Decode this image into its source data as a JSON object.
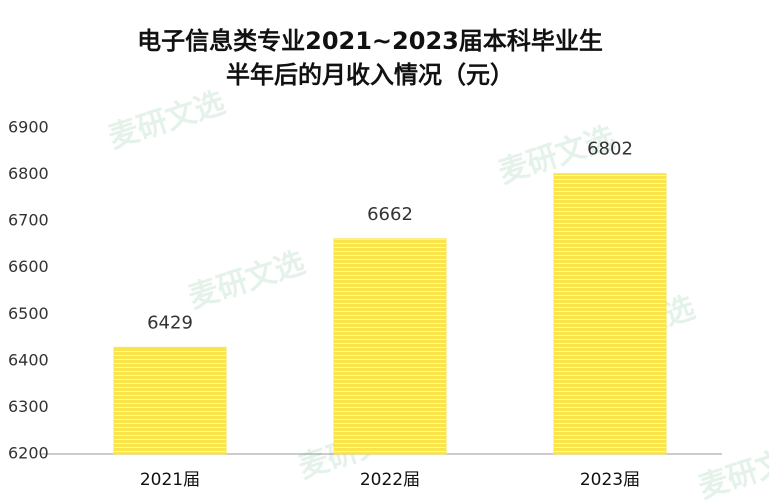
{
  "chart_data": {
    "type": "bar",
    "title": [
      "电子信息类专业2021~2023届本科毕业生",
      "半年后的月收入情况（元）"
    ],
    "categories": [
      "2021届",
      "2022届",
      "2023届"
    ],
    "values": [
      6429,
      6662,
      6802
    ],
    "color": "#f9e44c",
    "ylim": [
      6200,
      6900
    ],
    "yticks": [
      6200,
      6300,
      6400,
      6500,
      6600,
      6700,
      6800,
      6900
    ],
    "grid": false,
    "watermark": "麦研文选"
  }
}
